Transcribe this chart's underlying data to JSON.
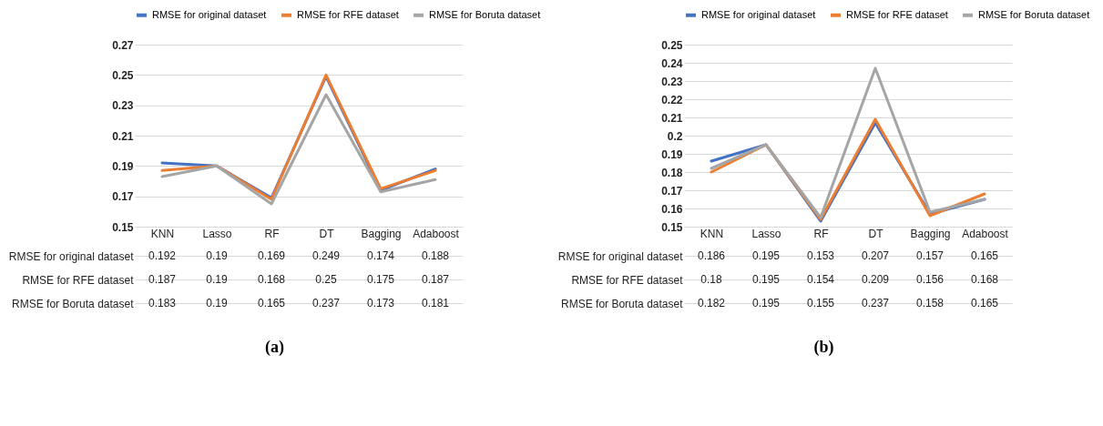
{
  "chart_data": [
    {
      "type": "line",
      "categories": [
        "KNN",
        "Lasso",
        "RF",
        "DT",
        "Bagging",
        "Adaboost"
      ],
      "ylim": [
        0.15,
        0.27
      ],
      "yticks": [
        0.15,
        0.17,
        0.19,
        0.21,
        0.23,
        0.25,
        0.27
      ],
      "grid": "y",
      "legend": "top",
      "data_labels": true,
      "marker": "none",
      "annotations": [
        "(a)"
      ],
      "series": [
        {
          "name": "RMSE for original dataset",
          "color": "#4472c4",
          "values": [
            0.192,
            0.19,
            0.169,
            0.249,
            0.174,
            0.188
          ]
        },
        {
          "name": "RMSE for RFE dataset",
          "color": "#ed7d31",
          "values": [
            0.187,
            0.19,
            0.168,
            0.25,
            0.175,
            0.187
          ]
        },
        {
          "name": "RMSE for Boruta dataset",
          "color": "#a5a5a5",
          "values": [
            0.183,
            0.19,
            0.165,
            0.237,
            0.173,
            0.181
          ]
        }
      ]
    },
    {
      "type": "line",
      "categories": [
        "KNN",
        "Lasso",
        "RF",
        "DT",
        "Bagging",
        "Adaboost"
      ],
      "ylim": [
        0.15,
        0.25
      ],
      "yticks": [
        0.15,
        0.16,
        0.17,
        0.18,
        0.19,
        0.2,
        0.21,
        0.22,
        0.23,
        0.24,
        0.25
      ],
      "grid": "y",
      "legend": "top",
      "data_labels": true,
      "marker": "none",
      "annotations": [
        "(b)"
      ],
      "series": [
        {
          "name": "RMSE for original dataset",
          "color": "#4472c4",
          "values": [
            0.186,
            0.195,
            0.153,
            0.207,
            0.157,
            0.165
          ]
        },
        {
          "name": "RMSE for RFE dataset",
          "color": "#ed7d31",
          "values": [
            0.18,
            0.195,
            0.154,
            0.209,
            0.156,
            0.168
          ]
        },
        {
          "name": "RMSE for Boruta dataset",
          "color": "#a5a5a5",
          "values": [
            0.182,
            0.195,
            0.155,
            0.237,
            0.158,
            0.165
          ]
        }
      ]
    }
  ]
}
